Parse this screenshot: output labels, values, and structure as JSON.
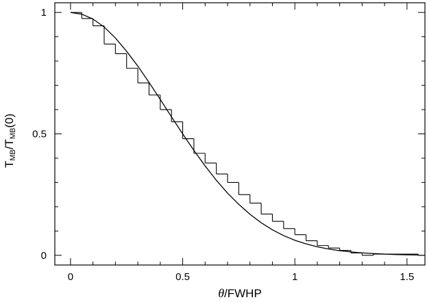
{
  "chart_data": {
    "type": "line",
    "title": "",
    "xlabel_var": "θ",
    "xlabel_rest": "/FWHP",
    "ylabel": {
      "t1": "T",
      "s1": "MB",
      "mid": "/T",
      "s2": "MB",
      "end": "(0)"
    },
    "xlim": [
      -0.07,
      1.58
    ],
    "ylim": [
      -0.04,
      1.04
    ],
    "xticks": [
      0,
      0.5,
      1,
      1.5
    ],
    "xtick_labels": [
      "0",
      "0.5",
      "1",
      "1.5"
    ],
    "yticks": [
      0,
      0.5,
      1
    ],
    "ytick_labels": [
      "0",
      "0.5",
      "1"
    ],
    "grid": false,
    "legend": "none",
    "series": [
      {
        "kind": "smooth-curve",
        "description": "Gaussian beam profile",
        "x": [
          0,
          0.05,
          0.1,
          0.15,
          0.2,
          0.25,
          0.3,
          0.35,
          0.4,
          0.45,
          0.5,
          0.55,
          0.6,
          0.65,
          0.7,
          0.75,
          0.8,
          0.85,
          0.9,
          0.95,
          1.0,
          1.05,
          1.1,
          1.15,
          1.2,
          1.25,
          1.3,
          1.35,
          1.4,
          1.45,
          1.5,
          1.55
        ],
        "y": [
          1.0,
          0.993,
          0.973,
          0.94,
          0.895,
          0.84,
          0.779,
          0.712,
          0.642,
          0.57,
          0.5,
          0.432,
          0.368,
          0.309,
          0.256,
          0.21,
          0.169,
          0.134,
          0.105,
          0.081,
          0.062,
          0.047,
          0.035,
          0.026,
          0.019,
          0.014,
          0.01,
          0.007,
          0.005,
          0.003,
          0.002,
          0.0013
        ]
      },
      {
        "kind": "step-histogram",
        "description": "Binned data",
        "bin_width": 0.05,
        "bin_starts": [
          0.0,
          0.05,
          0.1,
          0.15,
          0.2,
          0.25,
          0.3,
          0.35,
          0.4,
          0.45,
          0.5,
          0.55,
          0.6,
          0.65,
          0.7,
          0.75,
          0.8,
          0.85,
          0.9,
          0.95,
          1.0,
          1.05,
          1.1,
          1.15,
          1.2,
          1.25,
          1.3,
          1.35,
          1.4,
          1.45,
          1.5,
          1.55
        ],
        "values": [
          1.0,
          0.975,
          0.945,
          0.87,
          0.83,
          0.77,
          0.71,
          0.66,
          0.6,
          0.55,
          0.48,
          0.42,
          0.38,
          0.335,
          0.3,
          0.25,
          0.215,
          0.17,
          0.14,
          0.11,
          0.085,
          0.06,
          0.04,
          0.03,
          0.02,
          0.01,
          0.0,
          0.005,
          0.005,
          0.005,
          0.005,
          0.0
        ]
      }
    ]
  }
}
